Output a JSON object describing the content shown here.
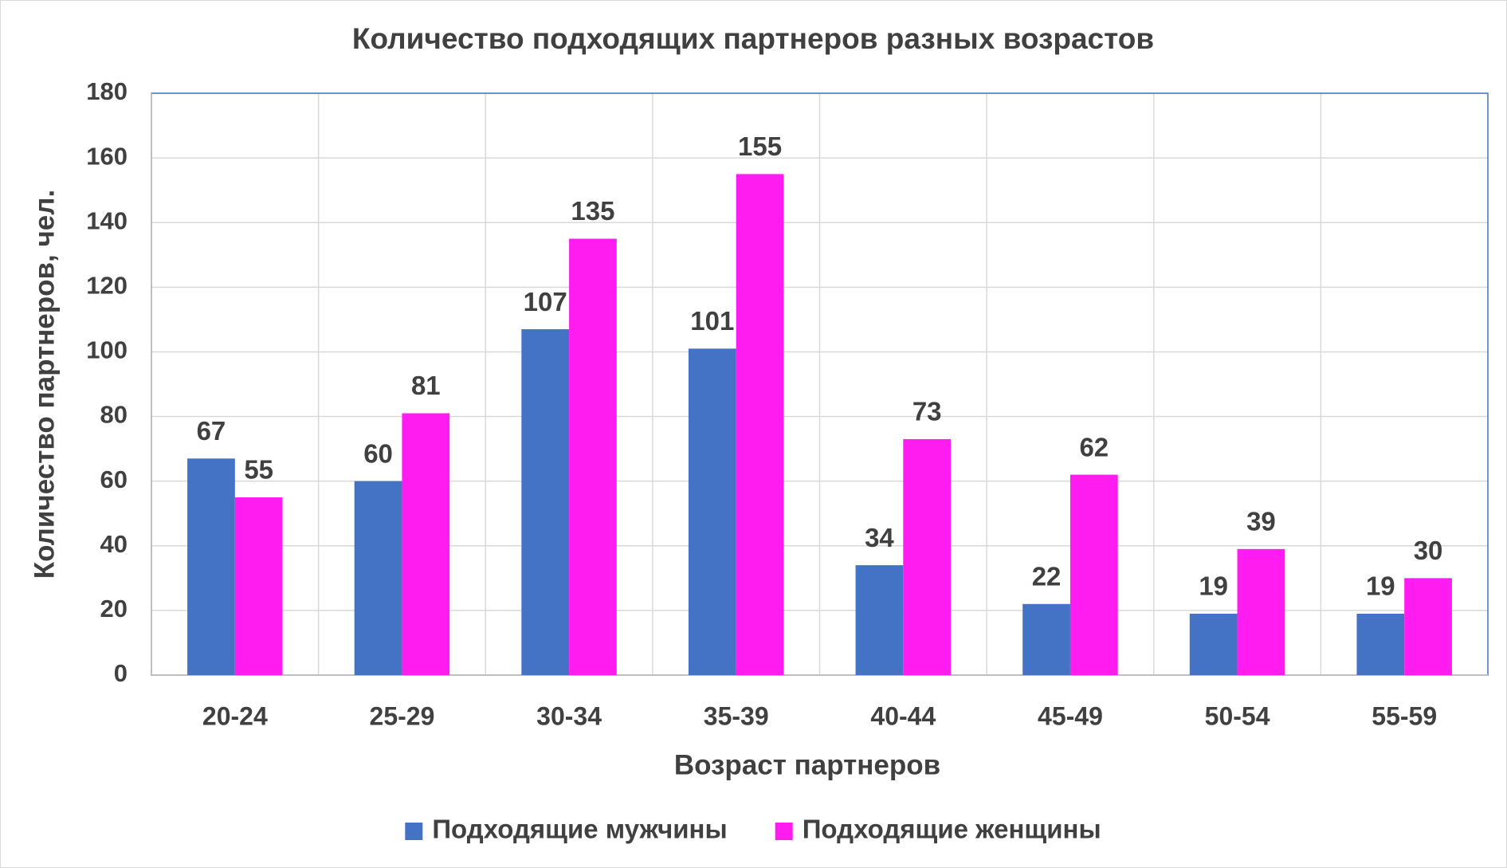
{
  "chart_data": {
    "type": "bar",
    "title": "Количество подходящих партнеров разных возрастов",
    "x_label": "Возраст партнеров",
    "y_label": "Количество партнеров, чел.",
    "categories": [
      "20-24",
      "25-29",
      "30-34",
      "35-39",
      "40-44",
      "45-49",
      "50-54",
      "55-59"
    ],
    "series": [
      {
        "name": "Подходящие мужчины",
        "color": "#4472c4",
        "values": [
          67,
          60,
          107,
          101,
          34,
          22,
          19,
          19
        ]
      },
      {
        "name": "Подходящие женщины",
        "color": "#ff1cf0",
        "values": [
          55,
          81,
          135,
          155,
          73,
          62,
          39,
          30
        ]
      }
    ],
    "ylim": [
      0,
      180
    ],
    "yticks": [
      0,
      20,
      40,
      60,
      80,
      100,
      120,
      140,
      160,
      180
    ],
    "grid": true,
    "legend": "bottom"
  }
}
